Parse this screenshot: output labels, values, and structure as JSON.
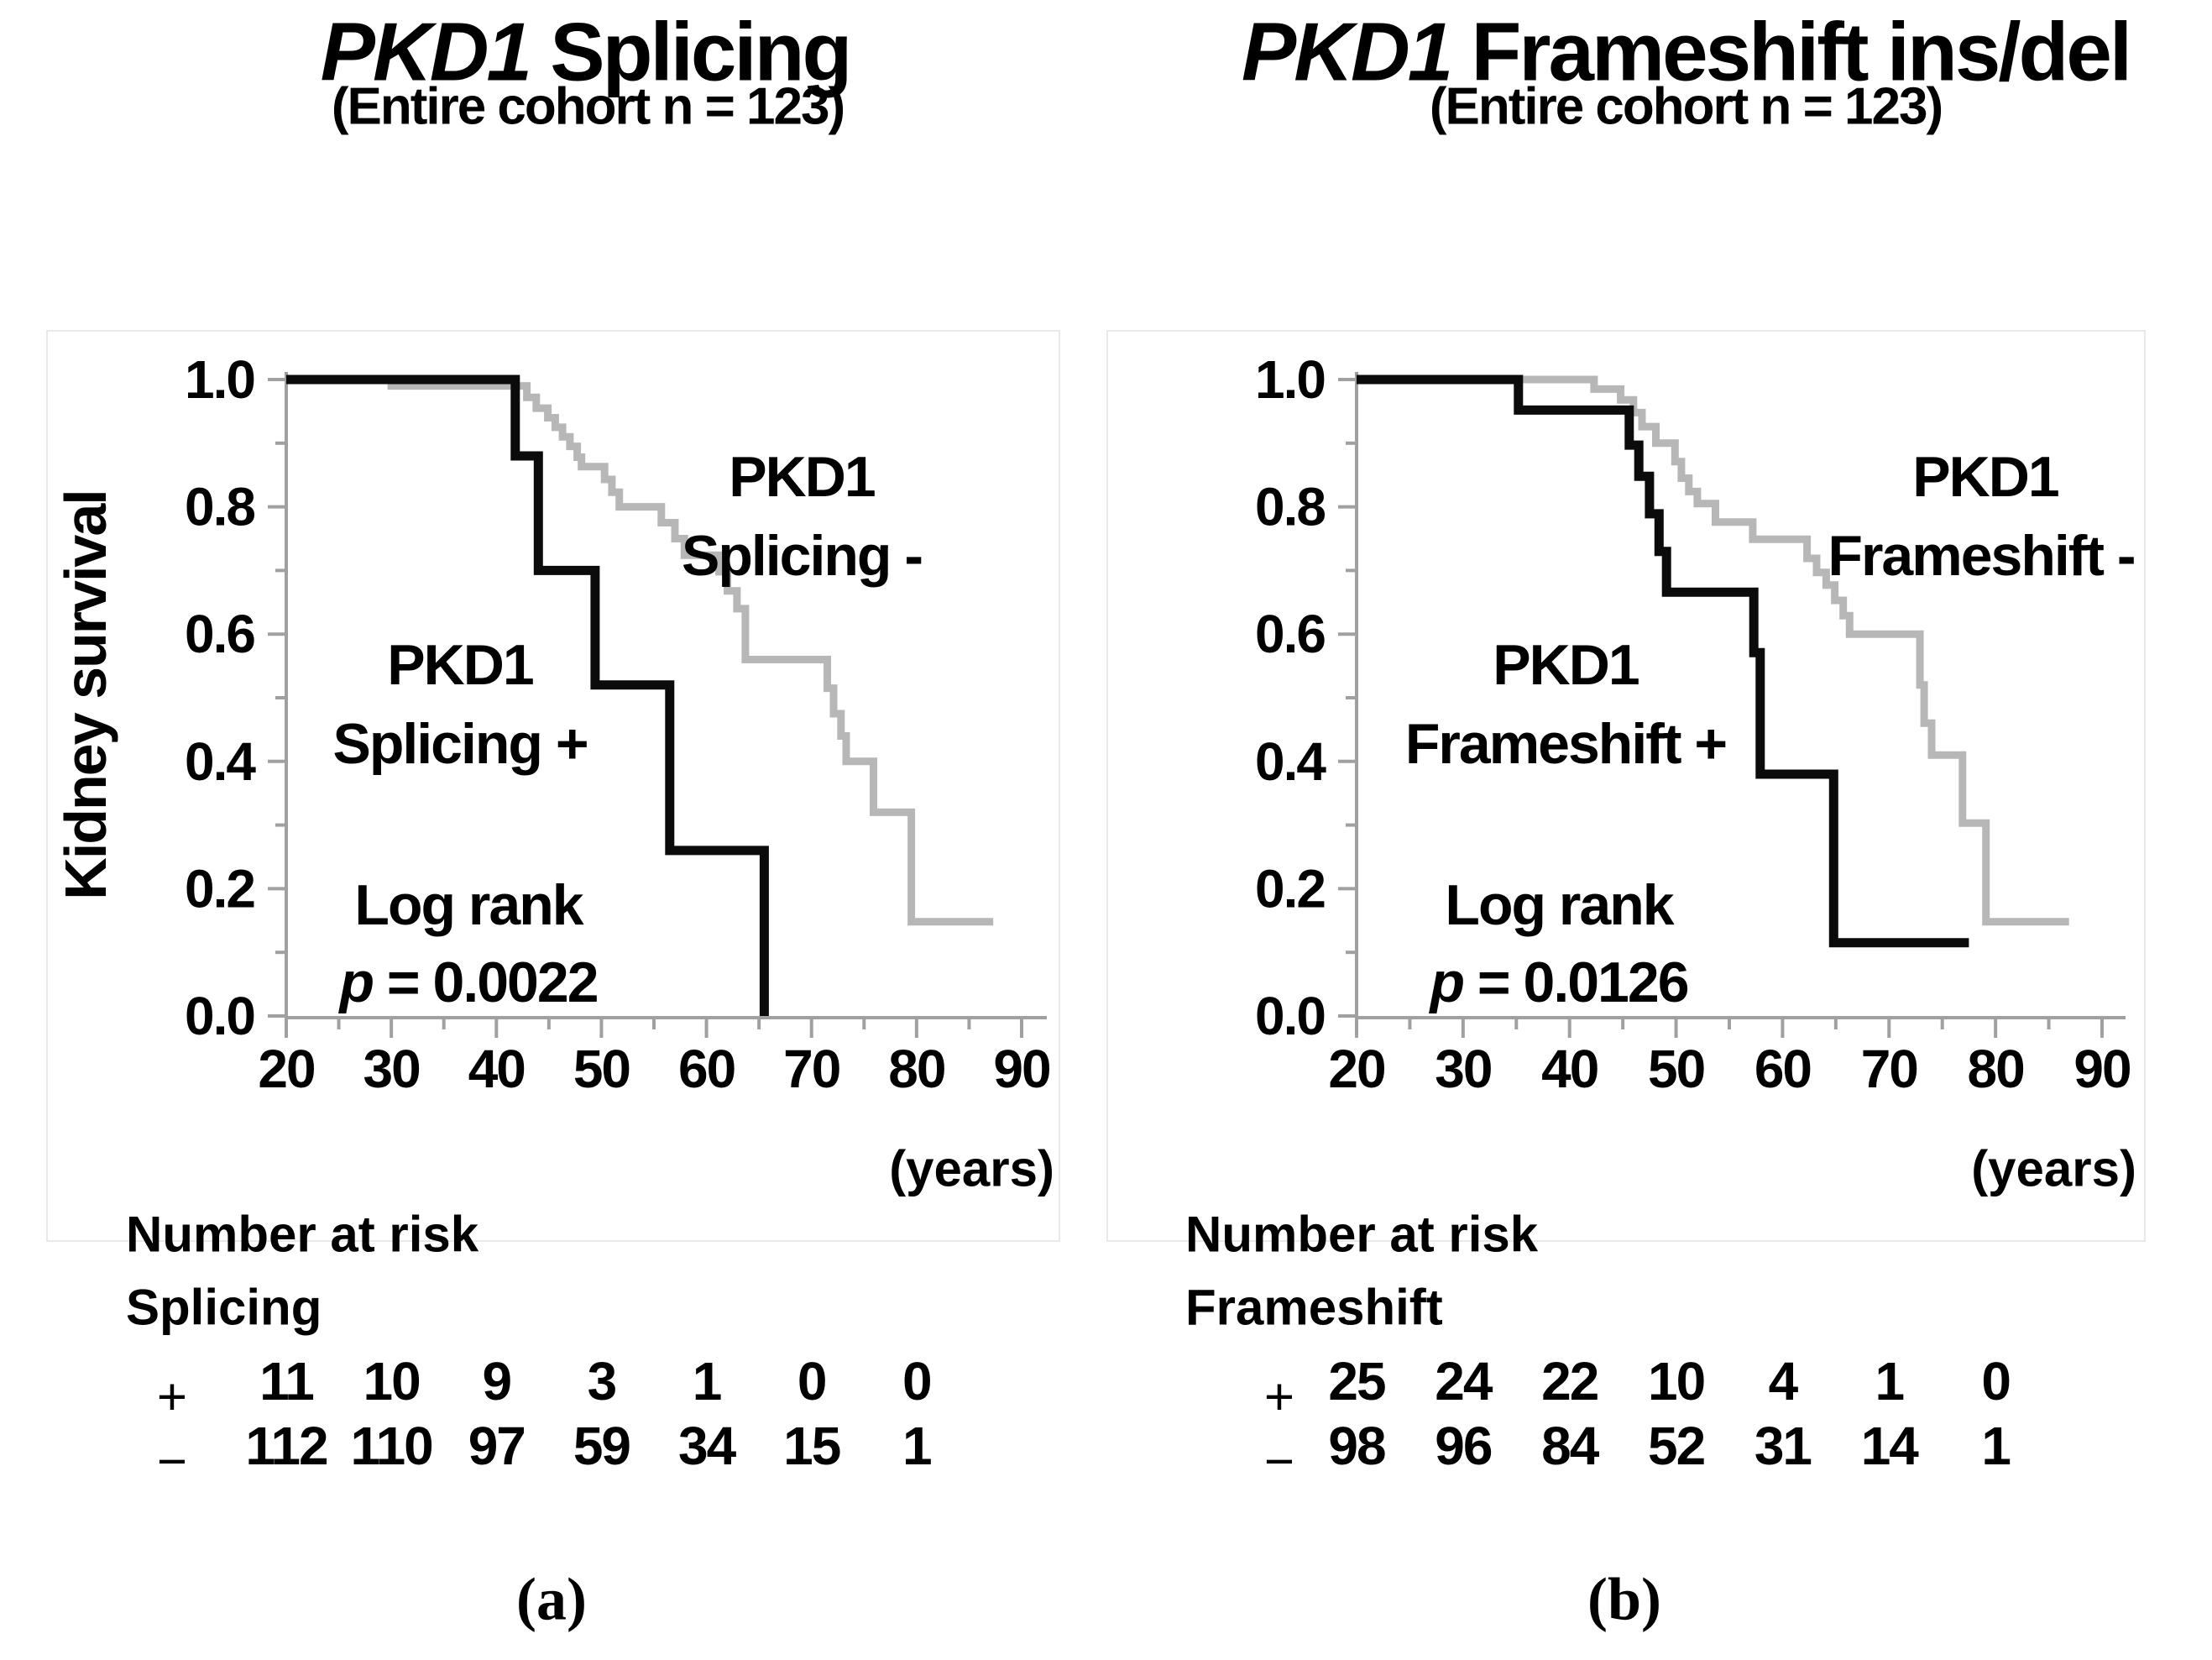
{
  "panels": [
    {
      "title_gene": "PKD1",
      "title_rest": " Splicing",
      "subtitle": "(Entire cohort  n = 123)",
      "y_axis_label": "Kidney survival",
      "x_unit": "(years)",
      "group_minus_line1": "PKD1",
      "group_minus_line2": "Splicing -",
      "group_plus_line1": "PKD1",
      "group_plus_line2": "Splicing +",
      "logrank_line1": "Log rank",
      "logrank_p_italic": "p",
      "logrank_p_rest": " = 0.0022",
      "risk_header": "Number at risk",
      "risk_group": "Splicing",
      "panel_label": "(a)"
    },
    {
      "title_gene": "PKD1",
      "title_rest": " Frameshift ins/del",
      "subtitle": "(Entire cohort  n = 123)",
      "y_axis_label": "",
      "x_unit": "(years)",
      "group_minus_line1": "PKD1",
      "group_minus_line2": "Frameshift  -",
      "group_plus_line1": "PKD1",
      "group_plus_line2": "Frameshift +",
      "logrank_line1": "Log rank",
      "logrank_p_italic": "p",
      "logrank_p_rest": " = 0.0126",
      "risk_header": "Number at risk",
      "risk_group": "Frameshift",
      "panel_label": "(b)"
    }
  ],
  "chart_data": [
    {
      "type": "line",
      "subtype": "kaplan-meier-step",
      "title": "PKD1 Splicing (Entire cohort n = 123)",
      "xlabel": "years",
      "ylabel": "Kidney survival",
      "xlim": [
        20,
        90
      ],
      "ylim": [
        0.0,
        1.0
      ],
      "grid": false,
      "legend_position": "none",
      "x_ticks": [
        20,
        30,
        40,
        50,
        60,
        70,
        80,
        90
      ],
      "y_tick_labels": [
        "0.0",
        "0.2",
        "0.4",
        "0.6",
        "0.8",
        "1.0"
      ],
      "log_rank_p": "0.0022",
      "series": [
        {
          "name": "PKD1 Splicing -",
          "color": "#b7b7b7",
          "steps": [
            [
              20,
              1.0
            ],
            [
              30,
              1.0
            ],
            [
              30,
              0.99
            ],
            [
              42.9,
              0.99
            ],
            [
              42.9,
              0.972
            ],
            [
              43.8,
              0.972
            ],
            [
              43.8,
              0.955
            ],
            [
              44.9,
              0.955
            ],
            [
              44.9,
              0.94
            ],
            [
              45.6,
              0.94
            ],
            [
              45.6,
              0.925
            ],
            [
              46.3,
              0.925
            ],
            [
              46.3,
              0.91
            ],
            [
              47,
              0.91
            ],
            [
              47,
              0.895
            ],
            [
              47.7,
              0.895
            ],
            [
              47.7,
              0.878
            ],
            [
              48.1,
              0.878
            ],
            [
              48.1,
              0.863
            ],
            [
              50.3,
              0.863
            ],
            [
              50.3,
              0.843
            ],
            [
              51,
              0.843
            ],
            [
              51,
              0.823
            ],
            [
              51.7,
              0.823
            ],
            [
              51.7,
              0.8
            ],
            [
              55.7,
              0.8
            ],
            [
              55.7,
              0.775
            ],
            [
              57,
              0.775
            ],
            [
              57,
              0.75
            ],
            [
              57.9,
              0.75
            ],
            [
              57.9,
              0.724
            ],
            [
              61.2,
              0.724
            ],
            [
              61.2,
              0.698
            ],
            [
              62,
              0.698
            ],
            [
              62,
              0.668
            ],
            [
              62.9,
              0.668
            ],
            [
              62.9,
              0.64
            ],
            [
              63.7,
              0.64
            ],
            [
              63.7,
              0.56
            ],
            [
              71.5,
              0.56
            ],
            [
              71.5,
              0.515
            ],
            [
              72.1,
              0.515
            ],
            [
              72.1,
              0.475
            ],
            [
              72.8,
              0.475
            ],
            [
              72.8,
              0.44
            ],
            [
              73.3,
              0.44
            ],
            [
              73.3,
              0.4
            ],
            [
              75.9,
              0.4
            ],
            [
              75.9,
              0.32
            ],
            [
              79.5,
              0.32
            ],
            [
              79.5,
              0.148
            ],
            [
              87.3,
              0.148
            ]
          ]
        },
        {
          "name": "PKD1 Splicing +",
          "color": "#0b0b0b",
          "steps": [
            [
              20,
              1.0
            ],
            [
              41.8,
              1.0
            ],
            [
              41.8,
              0.88
            ],
            [
              44,
              0.88
            ],
            [
              44,
              0.7
            ],
            [
              49.4,
              0.7
            ],
            [
              49.4,
              0.52
            ],
            [
              56.5,
              0.52
            ],
            [
              56.5,
              0.26
            ],
            [
              65.5,
              0.26
            ],
            [
              65.5,
              0.0
            ]
          ]
        }
      ],
      "number_at_risk": {
        "times": [
          20,
          30,
          40,
          50,
          60,
          70,
          80
        ],
        "rows": [
          {
            "symbol": "+",
            "values": [
              "11",
              "10",
              "9",
              "3",
              "1",
              "0",
              "0"
            ]
          },
          {
            "symbol": "−",
            "values": [
              "112",
              "110",
              "97",
              "59",
              "34",
              "15",
              "1"
            ]
          }
        ]
      }
    },
    {
      "type": "line",
      "subtype": "kaplan-meier-step",
      "title": "PKD1 Frameshift ins/del (Entire cohort n = 123)",
      "xlabel": "years",
      "ylabel": "Kidney survival",
      "xlim": [
        20,
        90
      ],
      "ylim": [
        0.0,
        1.0
      ],
      "grid": false,
      "legend_position": "none",
      "x_ticks": [
        20,
        30,
        40,
        50,
        60,
        70,
        80,
        90
      ],
      "y_tick_labels": [
        "0.0",
        "0.2",
        "0.4",
        "0.6",
        "0.8",
        "1.0"
      ],
      "log_rank_p": "0.0126",
      "series": [
        {
          "name": "PKD1 Frameshift -",
          "color": "#b7b7b7",
          "steps": [
            [
              20,
              1.0
            ],
            [
              42.3,
              1.0
            ],
            [
              42.3,
              0.985
            ],
            [
              44.8,
              0.985
            ],
            [
              44.8,
              0.968
            ],
            [
              46,
              0.968
            ],
            [
              46,
              0.948
            ],
            [
              46.8,
              0.948
            ],
            [
              46.8,
              0.926
            ],
            [
              48.1,
              0.926
            ],
            [
              48.1,
              0.9
            ],
            [
              49.9,
              0.9
            ],
            [
              49.9,
              0.871
            ],
            [
              50.5,
              0.871
            ],
            [
              50.5,
              0.845
            ],
            [
              51.2,
              0.845
            ],
            [
              51.2,
              0.824
            ],
            [
              52,
              0.824
            ],
            [
              52,
              0.805
            ],
            [
              53.7,
              0.805
            ],
            [
              53.7,
              0.776
            ],
            [
              57.2,
              0.776
            ],
            [
              57.2,
              0.749
            ],
            [
              62.3,
              0.749
            ],
            [
              62.3,
              0.719
            ],
            [
              63.2,
              0.719
            ],
            [
              63.2,
              0.697
            ],
            [
              64.1,
              0.697
            ],
            [
              64.1,
              0.677
            ],
            [
              64.9,
              0.677
            ],
            [
              64.9,
              0.653
            ],
            [
              65.7,
              0.653
            ],
            [
              65.7,
              0.629
            ],
            [
              66.3,
              0.629
            ],
            [
              66.3,
              0.6
            ],
            [
              72.9,
              0.6
            ],
            [
              72.9,
              0.52
            ],
            [
              73.3,
              0.52
            ],
            [
              73.3,
              0.46
            ],
            [
              74,
              0.46
            ],
            [
              74,
              0.41
            ],
            [
              76.9,
              0.41
            ],
            [
              76.9,
              0.303
            ],
            [
              79.1,
              0.303
            ],
            [
              79.1,
              0.148
            ],
            [
              86.9,
              0.148
            ]
          ]
        },
        {
          "name": "PKD1 Frameshift +",
          "color": "#0b0b0b",
          "steps": [
            [
              20,
              1.0
            ],
            [
              35.2,
              1.0
            ],
            [
              35.2,
              0.952
            ],
            [
              45.6,
              0.952
            ],
            [
              45.6,
              0.897
            ],
            [
              46.5,
              0.897
            ],
            [
              46.5,
              0.848
            ],
            [
              47.5,
              0.848
            ],
            [
              47.5,
              0.789
            ],
            [
              48.4,
              0.789
            ],
            [
              48.4,
              0.73
            ],
            [
              49.1,
              0.73
            ],
            [
              49.1,
              0.666
            ],
            [
              57.3,
              0.666
            ],
            [
              57.3,
              0.571
            ],
            [
              57.9,
              0.571
            ],
            [
              57.9,
              0.38
            ],
            [
              64.8,
              0.38
            ],
            [
              64.8,
              0.115
            ],
            [
              77.5,
              0.115
            ]
          ]
        }
      ],
      "number_at_risk": {
        "times": [
          20,
          30,
          40,
          50,
          60,
          70,
          80
        ],
        "rows": [
          {
            "symbol": "+",
            "values": [
              "25",
              "24",
              "22",
              "10",
              "4",
              "1",
              "0"
            ]
          },
          {
            "symbol": "−",
            "values": [
              "98",
              "96",
              "84",
              "52",
              "31",
              "14",
              "1"
            ]
          }
        ]
      }
    }
  ]
}
